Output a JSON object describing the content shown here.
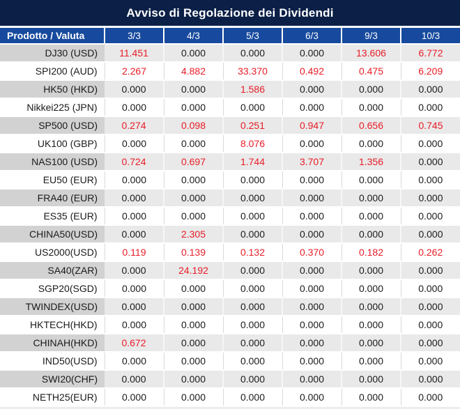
{
  "title": "Avviso di Regolazione dei Dividendi",
  "colors": {
    "title_bg": "#0c2047",
    "header_bg": "#174a9e",
    "row_alt_bg": "#e9e9e9",
    "row_alt_product_bg": "#d2d2d2",
    "separator_gray": "#d9d9d9",
    "value_nonzero_red": "#e81c26",
    "text_dark": "#1a1a1a",
    "header_text": "#ffffff"
  },
  "chart_data": {
    "type": "table",
    "title": "Avviso di Regolazione dei Dividendi",
    "row_header_label": "Prodotto / Valuta",
    "columns": [
      "3/3",
      "4/3",
      "5/3",
      "6/3",
      "9/3",
      "10/3"
    ],
    "value_style_rule": "nonzero values shown in red, zero values in dark gray/black",
    "rows": [
      {
        "product": "DJ30 (USD)",
        "values": [
          "11.451",
          "0.000",
          "0.000",
          "0.000",
          "13.606",
          "6.772"
        ]
      },
      {
        "product": "SPI200 (AUD)",
        "values": [
          "2.267",
          "4.882",
          "33.370",
          "0.492",
          "0.475",
          "6.209"
        ]
      },
      {
        "product": "HK50 (HKD)",
        "values": [
          "0.000",
          "0.000",
          "1.586",
          "0.000",
          "0.000",
          "0.000"
        ]
      },
      {
        "product": "Nikkei225 (JPN)",
        "values": [
          "0.000",
          "0.000",
          "0.000",
          "0.000",
          "0.000",
          "0.000"
        ]
      },
      {
        "product": "SP500 (USD)",
        "values": [
          "0.274",
          "0.098",
          "0.251",
          "0.947",
          "0.656",
          "0.745"
        ]
      },
      {
        "product": "UK100 (GBP)",
        "values": [
          "0.000",
          "0.000",
          "8.076",
          "0.000",
          "0.000",
          "0.000"
        ]
      },
      {
        "product": "NAS100 (USD)",
        "values": [
          "0.724",
          "0.697",
          "1.744",
          "3.707",
          "1.356",
          "0.000"
        ]
      },
      {
        "product": "EU50 (EUR)",
        "values": [
          "0.000",
          "0.000",
          "0.000",
          "0.000",
          "0.000",
          "0.000"
        ]
      },
      {
        "product": "FRA40 (EUR)",
        "values": [
          "0.000",
          "0.000",
          "0.000",
          "0.000",
          "0.000",
          "0.000"
        ]
      },
      {
        "product": "ES35 (EUR)",
        "values": [
          "0.000",
          "0.000",
          "0.000",
          "0.000",
          "0.000",
          "0.000"
        ]
      },
      {
        "product": "CHINA50(USD)",
        "values": [
          "0.000",
          "2.305",
          "0.000",
          "0.000",
          "0.000",
          "0.000"
        ]
      },
      {
        "product": "US2000(USD)",
        "values": [
          "0.119",
          "0.139",
          "0.132",
          "0.370",
          "0.182",
          "0.262"
        ]
      },
      {
        "product": "SA40(ZAR)",
        "values": [
          "0.000",
          "24.192",
          "0.000",
          "0.000",
          "0.000",
          "0.000"
        ]
      },
      {
        "product": "SGP20(SGD)",
        "values": [
          "0.000",
          "0.000",
          "0.000",
          "0.000",
          "0.000",
          "0.000"
        ]
      },
      {
        "product": "TWINDEX(USD)",
        "values": [
          "0.000",
          "0.000",
          "0.000",
          "0.000",
          "0.000",
          "0.000"
        ]
      },
      {
        "product": "HKTECH(HKD)",
        "values": [
          "0.000",
          "0.000",
          "0.000",
          "0.000",
          "0.000",
          "0.000"
        ]
      },
      {
        "product": "CHINAH(HKD)",
        "values": [
          "0.672",
          "0.000",
          "0.000",
          "0.000",
          "0.000",
          "0.000"
        ]
      },
      {
        "product": "IND50(USD)",
        "values": [
          "0.000",
          "0.000",
          "0.000",
          "0.000",
          "0.000",
          "0.000"
        ]
      },
      {
        "product": "SWI20(CHF)",
        "values": [
          "0.000",
          "0.000",
          "0.000",
          "0.000",
          "0.000",
          "0.000"
        ]
      },
      {
        "product": "NETH25(EUR)",
        "values": [
          "0.000",
          "0.000",
          "0.000",
          "0.000",
          "0.000",
          "0.000"
        ]
      }
    ]
  }
}
